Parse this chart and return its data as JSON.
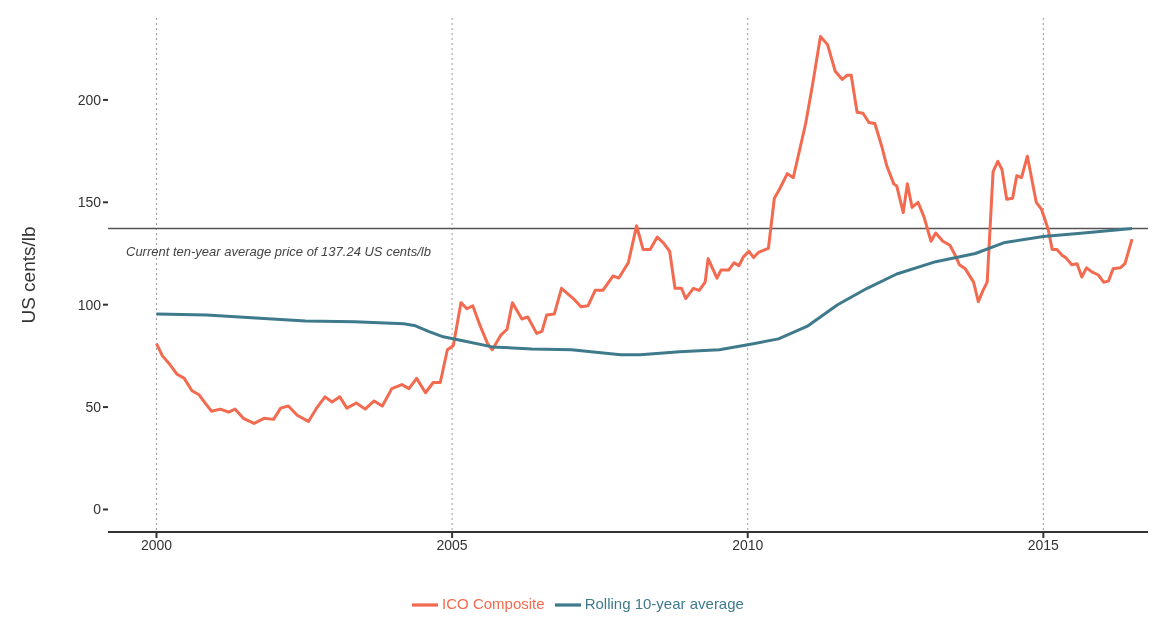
{
  "chart_data": {
    "type": "line",
    "ylabel": "US cents/lb",
    "xlim": [
      1999.18,
      2016.77
    ],
    "xticks": [
      2000,
      2005,
      2010,
      2015
    ],
    "ylim": [
      -11,
      240
    ],
    "yticks": [
      0,
      50,
      100,
      150,
      200
    ],
    "grid": "x",
    "legend": "bottom",
    "marker": "none",
    "line_style": "solid",
    "ref_lines": [
      {
        "axis": "y",
        "value": 137.24,
        "label": "Current ten-year average price of 137.24 US cents/lb",
        "color": "#555555"
      }
    ],
    "series": [
      {
        "name": "ICO Composite",
        "color": "#f26a4f",
        "x": [
          2000,
          2000.1,
          2000.22,
          2000.35,
          2000.47,
          2000.6,
          2000.72,
          2000.85,
          2000.93,
          2001.08,
          2001.22,
          2001.33,
          2001.47,
          2001.65,
          2001.82,
          2001.98,
          2002.1,
          2002.23,
          2002.38,
          2002.57,
          2002.72,
          2002.85,
          2002.97,
          2003.1,
          2003.22,
          2003.38,
          2003.53,
          2003.68,
          2003.82,
          2003.98,
          2004.15,
          2004.27,
          2004.4,
          2004.55,
          2004.68,
          2004.8,
          2004.92,
          2005.02,
          2005.15,
          2005.25,
          2005.35,
          2005.47,
          2005.6,
          2005.68,
          2005.82,
          2005.93,
          2006.02,
          2006.18,
          2006.28,
          2006.43,
          2006.52,
          2006.6,
          2006.73,
          2006.85,
          2007.05,
          2007.18,
          2007.3,
          2007.42,
          2007.55,
          2007.72,
          2007.82,
          2007.98,
          2008.12,
          2008.23,
          2008.35,
          2008.47,
          2008.58,
          2008.68,
          2008.77,
          2008.88,
          2008.95,
          2009.08,
          2009.18,
          2009.28,
          2009.33,
          2009.48,
          2009.55,
          2009.68,
          2009.77,
          2009.85,
          2009.93,
          2010.02,
          2010.1,
          2010.18,
          2010.35,
          2010.45,
          2010.53,
          2010.67,
          2010.77,
          2010.98,
          2011.1,
          2011.23,
          2011.35,
          2011.48,
          2011.6,
          2011.68,
          2011.75,
          2011.85,
          2011.95,
          2012.05,
          2012.15,
          2012.27,
          2012.35,
          2012.47,
          2012.52,
          2012.63,
          2012.7,
          2012.78,
          2012.88,
          2012.98,
          2013.1,
          2013.18,
          2013.3,
          2013.42,
          2013.52,
          2013.58,
          2013.68,
          2013.82,
          2013.9,
          2013.98,
          2014.05,
          2014.15,
          2014.23,
          2014.3,
          2014.38,
          2014.48,
          2014.55,
          2014.63,
          2014.73,
          2014.88,
          2014.97,
          2015.08,
          2015.15,
          2015.23,
          2015.32,
          2015.38,
          2015.48,
          2015.57,
          2015.65,
          2015.73,
          2015.82,
          2015.93,
          2016.02,
          2016.1,
          2016.18,
          2016.3,
          2016.38,
          2016.5
        ],
        "values": [
          81,
          75,
          71,
          66,
          64,
          58,
          56,
          51,
          48,
          49,
          47.5,
          49,
          44.5,
          42,
          44.5,
          44,
          49.5,
          50.5,
          46,
          43,
          50,
          55,
          52.5,
          55,
          49.5,
          52,
          49,
          53,
          50.5,
          59,
          61,
          59,
          64,
          57,
          62,
          62,
          78,
          80,
          101,
          98,
          99.5,
          90,
          81,
          78,
          85,
          88,
          101,
          93,
          94,
          86,
          87,
          95,
          95.5,
          108,
          103,
          99,
          99.5,
          107,
          107,
          114,
          113,
          120.5,
          138.5,
          127,
          127,
          133,
          130,
          126,
          108,
          108,
          103,
          108,
          107,
          111,
          122.5,
          113,
          117,
          117,
          120.5,
          119,
          123.5,
          126,
          123,
          125.5,
          127.5,
          152,
          156,
          164,
          162,
          188.5,
          208,
          231,
          227,
          214,
          210,
          212,
          212,
          194,
          193.5,
          189,
          188.5,
          177,
          168,
          159,
          158,
          145,
          159,
          147.5,
          150,
          143,
          131,
          135,
          131,
          129,
          123.5,
          119.5,
          117.5,
          111,
          101.5,
          107,
          111,
          165,
          170,
          166,
          151.5,
          152,
          163,
          162,
          172.5,
          150,
          146.5,
          137,
          127,
          127,
          124,
          123,
          119.5,
          120,
          113.5,
          118,
          116,
          114.5,
          111,
          111.5,
          117.5,
          118,
          120,
          132
        ]
      },
      {
        "name": "Rolling 10-year average",
        "color": "#3f7a8c",
        "x": [
          2000,
          2000.85,
          2001.68,
          2002.52,
          2003.35,
          2004.18,
          2004.38,
          2004.6,
          2004.85,
          2005.18,
          2005.68,
          2006.35,
          2007.02,
          2007.35,
          2007.85,
          2008.18,
          2008.85,
          2009.52,
          2010,
          2010.52,
          2011.02,
          2011.52,
          2012.02,
          2012.52,
          2013.18,
          2013.85,
          2014.35,
          2015,
          2015.68,
          2016.5
        ],
        "values": [
          95.5,
          95,
          93.5,
          92,
          91.7,
          90.7,
          89.7,
          87,
          84.3,
          82.4,
          79.4,
          78.4,
          78,
          77,
          75.5,
          75.5,
          77,
          78,
          80.4,
          83.3,
          89.7,
          100,
          108,
          115,
          121,
          125,
          130.4,
          133.3,
          135,
          137.2
        ]
      }
    ]
  }
}
